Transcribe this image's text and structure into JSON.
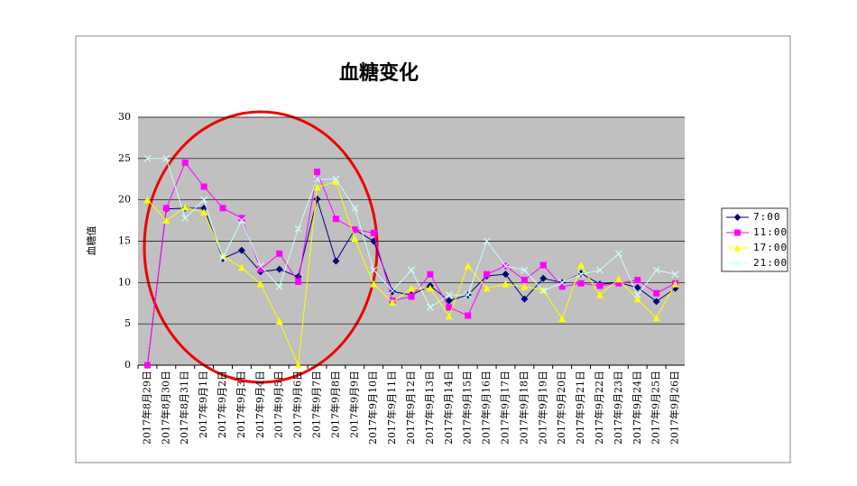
{
  "chart_data": {
    "type": "line",
    "title": "血糖变化",
    "y_label": "血糖值",
    "categories": [
      "2017年8月29日",
      "2017年8月30日",
      "2017年8月31日",
      "2017年9月1日",
      "2017年9月2日",
      "2017年9月3日",
      "2017年9月4日",
      "2017年9月5日",
      "2017年9月6日",
      "2017年9月7日",
      "2017年9月8日",
      "2017年9月9日",
      "2017年9月10日",
      "2017年9月11日",
      "2017年9月12日",
      "2017年9月13日",
      "2017年9月14日",
      "2017年9月15日",
      "2017年9月16日",
      "2017年9月17日",
      "2017年9月18日",
      "2017年9月19日",
      "2017年9月20日",
      "2017年9月21日",
      "2017年9月22日",
      "2017年9月23日",
      "2017年9月24日",
      "2017年9月25日",
      "2017年9月26日"
    ],
    "series": [
      {
        "name": "7:00",
        "color": "#000080",
        "marker": "diamond",
        "values": [
          0,
          18.9,
          19,
          19,
          12.9,
          13.9,
          11.3,
          11.6,
          10.7,
          20.1,
          12.6,
          16.4,
          15,
          8.9,
          8.5,
          9.6,
          7.8,
          8.5,
          10.8,
          11,
          8,
          10.5,
          10,
          11.1,
          9.8,
          10,
          9.4,
          7.7,
          9.3
        ]
      },
      {
        "name": "11:00",
        "color": "#ff00ff",
        "marker": "square",
        "values": [
          0,
          19,
          24.5,
          21.6,
          19,
          17.8,
          11.6,
          13.5,
          10.1,
          23.4,
          17.7,
          16.4,
          16,
          7.8,
          8.3,
          11,
          7,
          6,
          11,
          12,
          10.3,
          12.1,
          9.5,
          9.9,
          9.6,
          9.9,
          10.3,
          8.7,
          9.9
        ]
      },
      {
        "name": "17:00",
        "color": "#ffff00",
        "marker": "triangle",
        "values": [
          20,
          17.5,
          19.1,
          18.5,
          13.2,
          11.8,
          9.8,
          5.3,
          0,
          21.5,
          22.2,
          15.3,
          9.8,
          7.6,
          9.3,
          9.3,
          5.9,
          12,
          9.3,
          9.8,
          9.5,
          9.1,
          5.6,
          12.1,
          8.5,
          10.4,
          8,
          5.7,
          9.8
        ]
      },
      {
        "name": "21:00",
        "color": "#ccffff",
        "marker": "cross",
        "values": [
          25,
          25,
          17.8,
          20,
          13,
          17.5,
          12,
          9.5,
          16.5,
          22.5,
          22.5,
          19,
          11.5,
          9,
          11.5,
          7,
          8.5,
          8.5,
          15,
          12,
          11.5,
          9,
          10,
          11,
          11.5,
          13.5,
          8.5,
          11.5,
          11
        ]
      }
    ],
    "ylim": [
      0,
      30
    ],
    "yticks": [
      0,
      5,
      10,
      15,
      20,
      25,
      30
    ],
    "grid": true,
    "legend": "right"
  }
}
